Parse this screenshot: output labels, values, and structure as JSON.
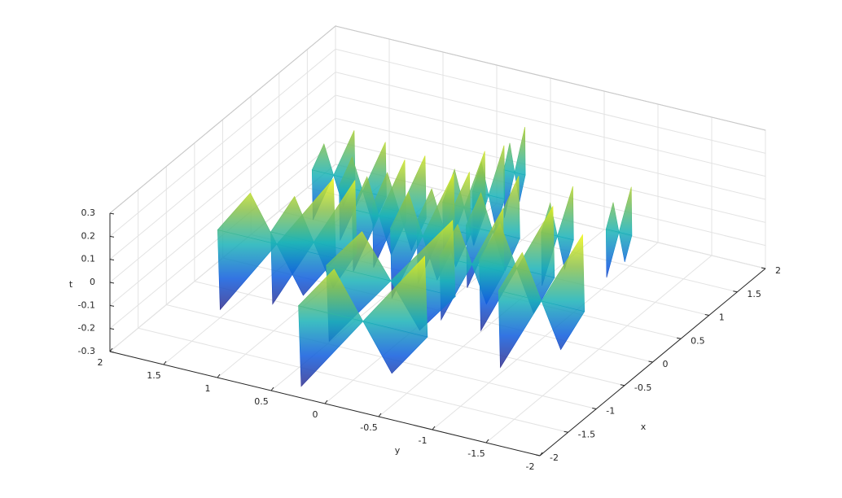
{
  "chart_data": {
    "type": "surface3d",
    "xlabel": "x",
    "ylabel": "y",
    "zlabel": "t",
    "xlim": [
      -2,
      2
    ],
    "ylim": [
      -2,
      2
    ],
    "zlim": [
      -0.3,
      0.3
    ],
    "xticks": [
      -2,
      -1.5,
      -1,
      -0.5,
      0,
      0.5,
      1,
      1.5,
      2
    ],
    "yticks": [
      -2,
      -1.5,
      -1,
      -0.5,
      0,
      0.5,
      1,
      1.5,
      2
    ],
    "zticks": [
      -0.3,
      -0.2,
      -0.1,
      0,
      0.1,
      0.2,
      0.3
    ],
    "grid": true,
    "colormap": [
      "#352a87",
      "#0f5cdd",
      "#1ab2b7",
      "#8cc24b",
      "#f9fb15"
    ],
    "surfaces": [
      {
        "x": -0.7,
        "y": 1.13,
        "r": 0.55,
        "h": 0.3
      },
      {
        "x": -0.52,
        "y": 0.88,
        "r": 0.4,
        "h": 0.28
      },
      {
        "x": 0.67,
        "y": 1.32,
        "r": 0.2,
        "h": 0.2
      },
      {
        "x": 0.52,
        "y": 0.97,
        "r": 0.22,
        "h": 0.22
      },
      {
        "x": 0.18,
        "y": 0.64,
        "r": 0.25,
        "h": 0.25
      },
      {
        "x": 0.33,
        "y": 0.53,
        "r": 0.25,
        "h": 0.25
      },
      {
        "x": -0.85,
        "y": -0.01,
        "r": 0.6,
        "h": 0.28
      },
      {
        "x": -1.63,
        "y": -0.16,
        "r": 0.6,
        "h": 0.3
      },
      {
        "x": 0.02,
        "y": 0.15,
        "r": 0.3,
        "h": 0.28
      },
      {
        "x": 0.24,
        "y": 0.07,
        "r": 0.25,
        "h": 0.25
      },
      {
        "x": 0.66,
        "y": 0.1,
        "r": 0.2,
        "h": 0.25
      },
      {
        "x": 0.96,
        "y": 0.03,
        "r": 0.15,
        "h": 0.22
      },
      {
        "x": 1.44,
        "y": 0.04,
        "r": 0.1,
        "h": 0.2
      },
      {
        "x": 0.37,
        "y": -0.32,
        "r": 0.25,
        "h": 0.25
      },
      {
        "x": -0.14,
        "y": -0.81,
        "r": 0.35,
        "h": 0.28
      },
      {
        "x": -0.58,
        "y": -1.27,
        "r": 0.4,
        "h": 0.3
      },
      {
        "x": 0.56,
        "y": -0.82,
        "r": 0.15,
        "h": 0.22
      },
      {
        "x": 0.87,
        "y": -1.23,
        "r": 0.12,
        "h": 0.2
      },
      {
        "x": -0.25,
        "y": -0.45,
        "r": 0.3,
        "h": 0.25
      }
    ]
  }
}
